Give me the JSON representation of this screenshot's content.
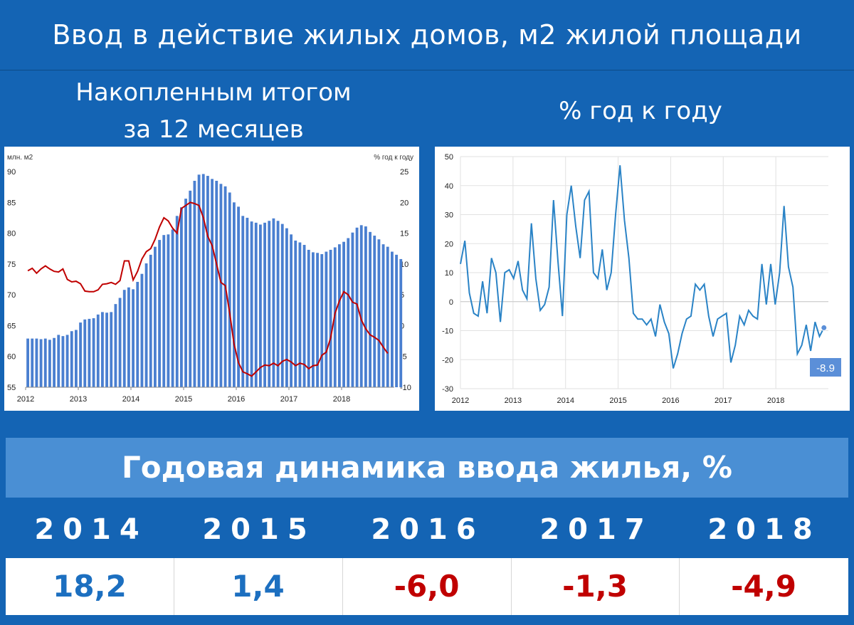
{
  "header": {
    "title": "Ввод в действие жилых домов, м2 жилой площади"
  },
  "left_panel": {
    "subtitle_line1": "Накопленным итогом",
    "subtitle_line2": "за 12 месяцев"
  },
  "right_panel": {
    "subtitle": "% год к году"
  },
  "summary": {
    "title": "Годовая динамика ввода жилья, %",
    "years": [
      "2014",
      "2015",
      "2016",
      "2017",
      "2018"
    ],
    "values": [
      "18,2",
      "1,4",
      "-6,0",
      "-1,3",
      "-4,9"
    ]
  },
  "colors": {
    "bar": "#4a7fd0",
    "left_line": "#c00000",
    "right_line": "#2a83c6",
    "positive": "#1c6fc0",
    "negative": "#c00000"
  },
  "chart_data": [
    {
      "type": "bar",
      "left_axis_label": "млн. м2",
      "right_axis_label": "% год к году",
      "x_ticks": [
        "2012",
        "2013",
        "2014",
        "2015",
        "2016",
        "2017",
        "2018"
      ],
      "ylim_left": [
        55,
        90
      ],
      "ylim_right": [
        -10,
        25
      ],
      "yticks_left": [
        55,
        60,
        65,
        70,
        75,
        80,
        85,
        90
      ],
      "yticks_right": [
        -10,
        -5,
        0,
        5,
        10,
        15,
        20,
        25
      ],
      "x_start": 2012.0,
      "series": [
        {
          "kind": "bar",
          "axis": "left",
          "values": [
            62.9,
            62.9,
            62.9,
            62.8,
            62.9,
            62.7,
            63.0,
            63.5,
            63.3,
            63.5,
            64.1,
            64.3,
            65.5,
            66.0,
            66.1,
            66.2,
            66.8,
            67.2,
            67.1,
            67.2,
            68.5,
            69.5,
            70.8,
            71.2,
            70.9,
            72.1,
            73.4,
            75.1,
            76.5,
            77.8,
            78.9,
            79.7,
            79.8,
            80.6,
            82.8,
            84.2,
            85.6,
            86.9,
            88.5,
            89.5,
            89.6,
            89.3,
            88.8,
            88.5,
            88.0,
            87.6,
            86.6,
            85.0,
            84.3,
            82.8,
            82.5,
            81.9,
            81.7,
            81.4,
            81.7,
            82.0,
            82.4,
            82.0,
            81.5,
            80.8,
            79.8,
            78.8,
            78.5,
            78.1,
            77.3,
            76.9,
            76.8,
            76.6,
            77.0,
            77.3,
            77.7,
            78.2,
            78.6,
            79.2,
            80.1,
            80.9,
            81.3,
            81.1,
            80.2,
            79.6,
            79.0,
            78.2,
            77.8,
            77.0,
            76.5,
            75.8
          ]
        },
        {
          "kind": "line",
          "axis": "right",
          "values": [
            8.9,
            9.3,
            8.5,
            9.2,
            9.7,
            9.2,
            8.8,
            8.7,
            9.2,
            7.5,
            7.1,
            7.2,
            6.8,
            5.6,
            5.5,
            5.5,
            5.8,
            6.7,
            6.8,
            7.0,
            6.7,
            7.3,
            10.5,
            10.5,
            7.4,
            8.8,
            10.8,
            12.0,
            12.5,
            14.0,
            16.0,
            17.5,
            17.0,
            15.8,
            15.0,
            19.0,
            19.5,
            20.0,
            19.8,
            19.5,
            17.5,
            14.5,
            13.0,
            10.0,
            7.0,
            6.5,
            2.0,
            -3.0,
            -6.0,
            -7.5,
            -7.8,
            -8.2,
            -7.5,
            -6.8,
            -6.4,
            -6.5,
            -6.1,
            -6.5,
            -5.8,
            -5.5,
            -5.9,
            -6.5,
            -6.1,
            -6.3,
            -7.0,
            -6.5,
            -6.4,
            -4.8,
            -4.3,
            -2.0,
            2.0,
            4.0,
            5.5,
            5.0,
            3.8,
            3.5,
            0.9,
            -0.5,
            -1.5,
            -1.9,
            -2.4,
            -3.5,
            -4.5
          ]
        }
      ]
    },
    {
      "type": "line",
      "ylabel": "",
      "x_ticks": [
        "2012",
        "2013",
        "2014",
        "2015",
        "2016",
        "2017",
        "2018"
      ],
      "ylim": [
        -30,
        50
      ],
      "yticks": [
        -30,
        -20,
        -10,
        0,
        10,
        20,
        30,
        40,
        50
      ],
      "x_start": 2012.0,
      "last_point_label": "-8.9",
      "values": [
        13,
        21,
        3,
        -4,
        -5,
        7,
        -4,
        15,
        10,
        -7,
        10,
        11,
        8,
        14,
        4,
        1,
        27,
        8,
        -3,
        -1,
        5,
        35,
        14,
        -5,
        30,
        40,
        26,
        15,
        35,
        38,
        10,
        8,
        18,
        4,
        10,
        30,
        47,
        28,
        15,
        -4,
        -6,
        -6,
        -8,
        -6,
        -12,
        -1,
        -7,
        -11,
        -23,
        -18,
        -11,
        -6,
        -5,
        6,
        4,
        6,
        -5,
        -12,
        -6,
        -5,
        -4,
        -21,
        -15,
        -5,
        -8,
        -3,
        -5,
        -6,
        13,
        -1,
        13,
        -1,
        10,
        33,
        12,
        5,
        -18,
        -15,
        -8,
        -17,
        -7,
        -12,
        -9
      ]
    }
  ]
}
